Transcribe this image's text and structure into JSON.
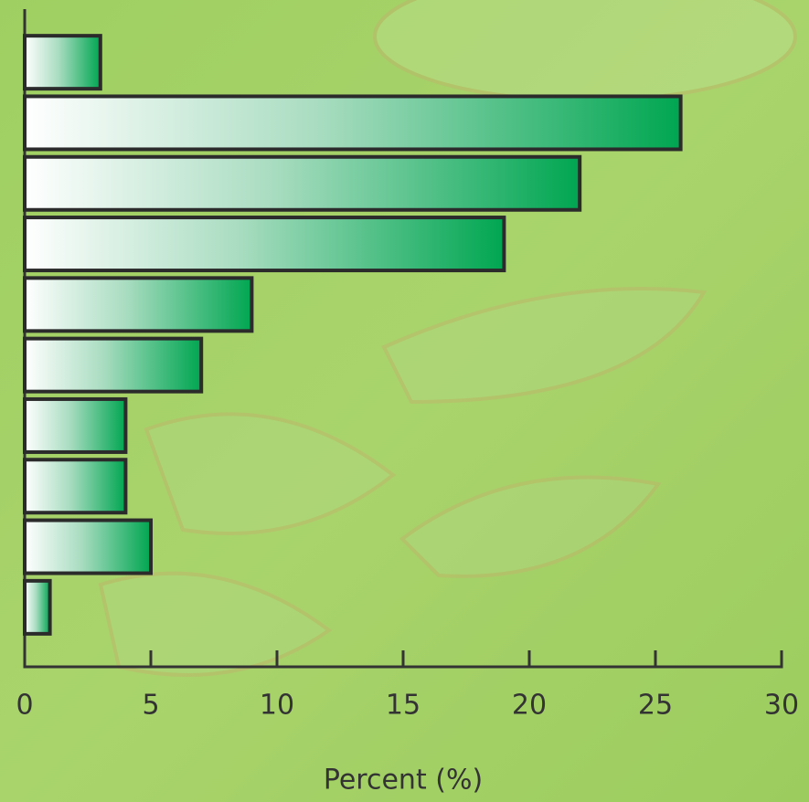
{
  "chart_data": {
    "type": "bar",
    "orientation": "horizontal",
    "xlabel": "Percent (%)",
    "categories": [
      null,
      null,
      null,
      null,
      null,
      null,
      null,
      null,
      null,
      null
    ],
    "values": [
      3,
      26,
      22,
      19,
      9,
      7,
      4,
      4,
      5,
      1
    ],
    "color": "#00a651",
    "xlim": [
      0,
      30
    ],
    "xticks": [
      0,
      5,
      10,
      15,
      20,
      25,
      30
    ]
  }
}
